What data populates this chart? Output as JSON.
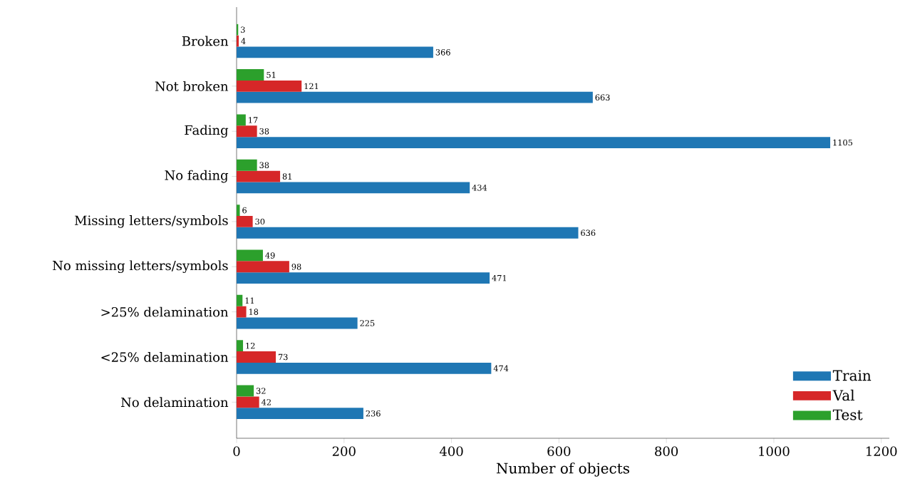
{
  "chart_data": {
    "type": "bar",
    "orientation": "horizontal",
    "xlabel": "Number of objects",
    "categories": [
      "Broken",
      "Not broken",
      "Fading",
      "No fading",
      "Missing letters/symbols",
      "No missing letters/symbols",
      ">25% delamination",
      "<25% delamination",
      "No delamination"
    ],
    "series": [
      {
        "name": "Train",
        "color": "#1f77b4",
        "values": [
          366,
          663,
          1105,
          434,
          636,
          471,
          225,
          474,
          236
        ]
      },
      {
        "name": "Val",
        "color": "#d62728",
        "values": [
          4,
          121,
          38,
          81,
          30,
          98,
          18,
          73,
          42
        ]
      },
      {
        "name": "Test",
        "color": "#2ca02c",
        "values": [
          3,
          51,
          17,
          38,
          6,
          49,
          11,
          12,
          32
        ]
      }
    ],
    "xlim": [
      0,
      1215
    ],
    "xticks": [
      0,
      200,
      400,
      600,
      800,
      1000,
      1200
    ],
    "data_labels": true,
    "legend": "bottom right",
    "grid": false
  }
}
